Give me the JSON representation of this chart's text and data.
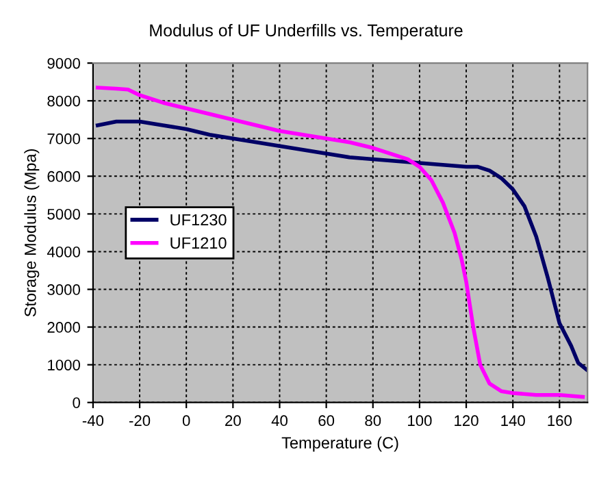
{
  "chart_data": {
    "type": "line",
    "title": "Modulus of UF Underfills vs. Temperature",
    "xlabel": "Temperature (C)",
    "ylabel": "Storage Modulus (Mpa)",
    "xlim": [
      -40,
      172
    ],
    "xticks": [
      -40,
      -20,
      0,
      20,
      40,
      60,
      80,
      100,
      120,
      140,
      160
    ],
    "ylim": [
      0,
      9000
    ],
    "yticks": [
      0,
      1000,
      2000,
      3000,
      4000,
      5000,
      6000,
      7000,
      8000,
      9000
    ],
    "grid": true,
    "legend": "center left",
    "line_style": "solid",
    "marker": "none",
    "series": [
      {
        "name": "UF1230",
        "color": "#000066",
        "x": [
          -38,
          -34,
          -30,
          -20,
          -10,
          0,
          10,
          20,
          30,
          40,
          50,
          60,
          70,
          80,
          90,
          100,
          110,
          120,
          125,
          130,
          135,
          140,
          145,
          150,
          155,
          160,
          165,
          168,
          172
        ],
        "values": [
          7350,
          7400,
          7450,
          7450,
          7350,
          7250,
          7100,
          7000,
          6900,
          6800,
          6700,
          6600,
          6500,
          6450,
          6400,
          6350,
          6300,
          6250,
          6250,
          6150,
          5950,
          5650,
          5200,
          4400,
          3300,
          2100,
          1500,
          1050,
          850
        ]
      },
      {
        "name": "UF1210",
        "color": "#ff00ff",
        "x": [
          -38,
          -30,
          -25,
          -20,
          -10,
          0,
          10,
          20,
          30,
          40,
          50,
          60,
          70,
          80,
          90,
          95,
          100,
          105,
          110,
          115,
          118,
          120,
          123,
          126,
          130,
          135,
          140,
          150,
          160,
          170
        ],
        "values": [
          8350,
          8320,
          8300,
          8150,
          7950,
          7800,
          7650,
          7500,
          7350,
          7200,
          7100,
          7000,
          6900,
          6750,
          6550,
          6450,
          6250,
          5900,
          5300,
          4500,
          3800,
          3200,
          2000,
          1000,
          500,
          300,
          250,
          200,
          200,
          150
        ]
      }
    ]
  }
}
